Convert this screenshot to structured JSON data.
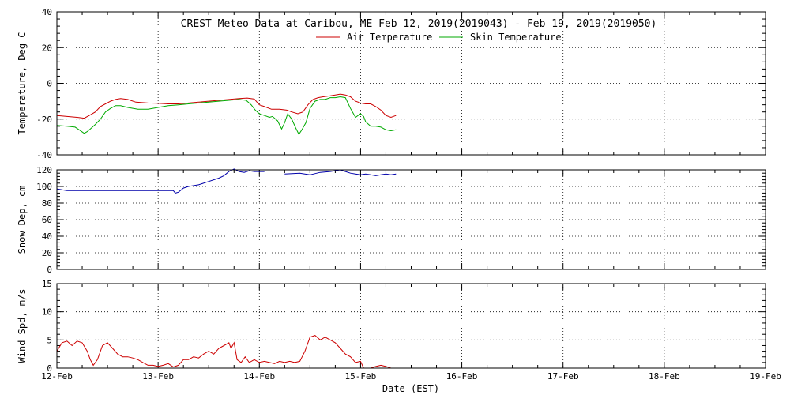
{
  "chart_data": {
    "type": "line",
    "title": "CREST Meteo Data at Caribou, ME   Feb 12, 2019(2019043) - Feb 19, 2019(2019050)",
    "xlabel": "Date (EST)",
    "xlim": [
      0,
      7
    ],
    "x_tick_labels": [
      "12-Feb",
      "13-Feb",
      "14-Feb",
      "15-Feb",
      "16-Feb",
      "17-Feb",
      "18-Feb",
      "19-Feb"
    ],
    "grid": true,
    "legend_position": "top-center",
    "panels": [
      {
        "name": "temperature",
        "ylabel": "Temperature, Deg C",
        "ylim": [
          -40,
          40
        ],
        "yticks": [
          -40,
          -20,
          0,
          20,
          40
        ],
        "series": [
          {
            "name": "Air Temperature",
            "color": "#cc0000",
            "points": [
              [
                0.0,
                -18.0
              ],
              [
                0.1,
                -18.5
              ],
              [
                0.2,
                -19.0
              ],
              [
                0.27,
                -19.5
              ],
              [
                0.32,
                -18.0
              ],
              [
                0.38,
                -16.0
              ],
              [
                0.43,
                -13.0
              ],
              [
                0.48,
                -11.5
              ],
              [
                0.53,
                -10.0
              ],
              [
                0.58,
                -9.0
              ],
              [
                0.63,
                -8.5
              ],
              [
                0.7,
                -9.0
              ],
              [
                0.78,
                -10.5
              ],
              [
                0.9,
                -11.0
              ],
              [
                1.0,
                -11.2
              ],
              [
                1.1,
                -11.5
              ],
              [
                1.2,
                -11.5
              ],
              [
                1.3,
                -11.0
              ],
              [
                1.4,
                -10.5
              ],
              [
                1.5,
                -10.0
              ],
              [
                1.6,
                -9.5
              ],
              [
                1.7,
                -9.0
              ],
              [
                1.8,
                -8.5
              ],
              [
                1.88,
                -8.2
              ],
              [
                1.95,
                -8.8
              ],
              [
                2.0,
                -12.0
              ],
              [
                2.05,
                -13.0
              ],
              [
                2.12,
                -14.5
              ],
              [
                2.2,
                -14.5
              ],
              [
                2.27,
                -15.0
              ],
              [
                2.32,
                -16.0
              ],
              [
                2.38,
                -17.0
              ],
              [
                2.43,
                -16.0
              ],
              [
                2.48,
                -12.0
              ],
              [
                2.53,
                -9.0
              ],
              [
                2.58,
                -8.0
              ],
              [
                2.63,
                -7.5
              ],
              [
                2.7,
                -7.0
              ],
              [
                2.75,
                -6.5
              ],
              [
                2.8,
                -6.0
              ],
              [
                2.85,
                -6.5
              ],
              [
                2.9,
                -7.5
              ],
              [
                2.95,
                -10.0
              ],
              [
                3.0,
                -11.0
              ],
              [
                3.05,
                -11.5
              ],
              [
                3.1,
                -11.5
              ],
              [
                3.15,
                -13.0
              ],
              [
                3.2,
                -15.0
              ],
              [
                3.25,
                -18.0
              ],
              [
                3.3,
                -19.0
              ],
              [
                3.35,
                -18.0
              ]
            ]
          },
          {
            "name": "Skin Temperature",
            "color": "#00aa00",
            "points": [
              [
                0.0,
                -23.5
              ],
              [
                0.1,
                -24.0
              ],
              [
                0.18,
                -24.5
              ],
              [
                0.22,
                -26.0
              ],
              [
                0.27,
                -28.0
              ],
              [
                0.3,
                -27.0
              ],
              [
                0.33,
                -25.5
              ],
              [
                0.38,
                -23.0
              ],
              [
                0.43,
                -20.0
              ],
              [
                0.48,
                -16.0
              ],
              [
                0.53,
                -14.0
              ],
              [
                0.58,
                -12.5
              ],
              [
                0.63,
                -12.5
              ],
              [
                0.7,
                -13.5
              ],
              [
                0.8,
                -14.5
              ],
              [
                0.9,
                -14.5
              ],
              [
                1.0,
                -13.5
              ],
              [
                1.1,
                -12.5
              ],
              [
                1.2,
                -12.0
              ],
              [
                1.3,
                -11.5
              ],
              [
                1.4,
                -11.0
              ],
              [
                1.5,
                -10.5
              ],
              [
                1.6,
                -10.0
              ],
              [
                1.7,
                -9.5
              ],
              [
                1.8,
                -9.0
              ],
              [
                1.87,
                -9.5
              ],
              [
                1.92,
                -12.0
              ],
              [
                1.96,
                -15.0
              ],
              [
                2.0,
                -17.0
              ],
              [
                2.05,
                -18.0
              ],
              [
                2.1,
                -19.0
              ],
              [
                2.13,
                -18.5
              ],
              [
                2.18,
                -21.0
              ],
              [
                2.22,
                -25.5
              ],
              [
                2.25,
                -22.0
              ],
              [
                2.28,
                -17.0
              ],
              [
                2.32,
                -20.0
              ],
              [
                2.36,
                -25.0
              ],
              [
                2.39,
                -28.5
              ],
              [
                2.42,
                -26.0
              ],
              [
                2.46,
                -22.0
              ],
              [
                2.5,
                -14.0
              ],
              [
                2.55,
                -10.0
              ],
              [
                2.6,
                -9.0
              ],
              [
                2.65,
                -9.0
              ],
              [
                2.7,
                -8.0
              ],
              [
                2.75,
                -8.0
              ],
              [
                2.8,
                -7.5
              ],
              [
                2.85,
                -8.0
              ],
              [
                2.9,
                -14.0
              ],
              [
                2.95,
                -19.0
              ],
              [
                3.0,
                -17.0
              ],
              [
                3.03,
                -18.5
              ],
              [
                3.05,
                -21.5
              ],
              [
                3.1,
                -24.0
              ],
              [
                3.15,
                -24.0
              ],
              [
                3.2,
                -24.5
              ],
              [
                3.25,
                -26.0
              ],
              [
                3.3,
                -26.5
              ],
              [
                3.35,
                -26.0
              ]
            ]
          }
        ]
      },
      {
        "name": "snow-depth",
        "ylabel": "Snow Dep, cm",
        "ylim": [
          0,
          120
        ],
        "yticks": [
          0,
          20,
          40,
          60,
          80,
          100,
          120
        ],
        "series": [
          {
            "name": "",
            "color": "#0000aa",
            "points": [
              [
                0.0,
                97
              ],
              [
                0.05,
                96
              ],
              [
                0.1,
                95
              ],
              [
                0.2,
                95
              ],
              [
                0.4,
                95
              ],
              [
                0.6,
                95
              ],
              [
                0.8,
                95
              ],
              [
                1.0,
                95
              ],
              [
                1.15,
                95
              ],
              [
                1.17,
                92
              ],
              [
                1.2,
                93
              ],
              [
                1.25,
                98
              ],
              [
                1.3,
                100
              ],
              [
                1.4,
                102
              ],
              [
                1.5,
                106
              ],
              [
                1.6,
                110
              ],
              [
                1.65,
                113
              ],
              [
                1.7,
                118
              ],
              [
                1.75,
                121
              ],
              [
                1.8,
                118
              ],
              [
                1.85,
                117
              ],
              [
                1.9,
                119
              ],
              [
                1.95,
                118
              ],
              [
                2.0,
                118
              ],
              [
                2.05,
                118
              ]
            ]
          },
          {
            "name": "",
            "color": "#0000aa",
            "points": [
              [
                2.25,
                115
              ],
              [
                2.4,
                116
              ],
              [
                2.5,
                114
              ],
              [
                2.6,
                117
              ],
              [
                2.7,
                118
              ],
              [
                2.8,
                120
              ],
              [
                2.85,
                118
              ],
              [
                2.9,
                116
              ],
              [
                2.95,
                115
              ],
              [
                3.0,
                114
              ],
              [
                3.05,
                115
              ],
              [
                3.1,
                114
              ],
              [
                3.15,
                113
              ],
              [
                3.2,
                114
              ],
              [
                3.25,
                115
              ],
              [
                3.3,
                114
              ],
              [
                3.35,
                115
              ]
            ]
          }
        ]
      },
      {
        "name": "wind-speed",
        "ylabel": "Wind Spd, m/s",
        "ylim": [
          0,
          15
        ],
        "yticks": [
          0,
          5,
          10,
          15
        ],
        "series": [
          {
            "name": "",
            "color": "#cc0000",
            "points": [
              [
                0.0,
                3.0
              ],
              [
                0.05,
                4.5
              ],
              [
                0.1,
                4.8
              ],
              [
                0.15,
                4.0
              ],
              [
                0.2,
                4.8
              ],
              [
                0.25,
                4.5
              ],
              [
                0.3,
                3.0
              ],
              [
                0.33,
                1.5
              ],
              [
                0.36,
                0.5
              ],
              [
                0.4,
                1.5
              ],
              [
                0.45,
                4.0
              ],
              [
                0.5,
                4.5
              ],
              [
                0.55,
                3.5
              ],
              [
                0.6,
                2.5
              ],
              [
                0.65,
                2.0
              ],
              [
                0.7,
                2.0
              ],
              [
                0.75,
                1.8
              ],
              [
                0.8,
                1.5
              ],
              [
                0.85,
                1.0
              ],
              [
                0.9,
                0.5
              ],
              [
                0.95,
                0.5
              ],
              [
                1.0,
                0.3
              ],
              [
                1.05,
                0.5
              ],
              [
                1.1,
                0.8
              ],
              [
                1.15,
                0.2
              ],
              [
                1.2,
                0.5
              ],
              [
                1.25,
                1.5
              ],
              [
                1.3,
                1.5
              ],
              [
                1.35,
                2.0
              ],
              [
                1.4,
                1.8
              ],
              [
                1.45,
                2.5
              ],
              [
                1.5,
                3.0
              ],
              [
                1.55,
                2.5
              ],
              [
                1.6,
                3.5
              ],
              [
                1.65,
                4.0
              ],
              [
                1.7,
                4.5
              ],
              [
                1.72,
                3.5
              ],
              [
                1.75,
                4.5
              ],
              [
                1.78,
                1.5
              ],
              [
                1.82,
                1.0
              ],
              [
                1.86,
                2.0
              ],
              [
                1.9,
                1.0
              ],
              [
                1.95,
                1.5
              ],
              [
                2.0,
                1.0
              ],
              [
                2.05,
                1.2
              ],
              [
                2.1,
                1.0
              ],
              [
                2.15,
                0.8
              ],
              [
                2.2,
                1.2
              ],
              [
                2.25,
                1.0
              ],
              [
                2.3,
                1.2
              ],
              [
                2.35,
                1.0
              ],
              [
                2.4,
                1.2
              ],
              [
                2.45,
                3.0
              ],
              [
                2.5,
                5.5
              ],
              [
                2.55,
                5.8
              ],
              [
                2.6,
                5.0
              ],
              [
                2.65,
                5.5
              ],
              [
                2.7,
                5.0
              ],
              [
                2.75,
                4.5
              ],
              [
                2.8,
                3.5
              ],
              [
                2.85,
                2.5
              ],
              [
                2.9,
                2.0
              ],
              [
                2.95,
                1.0
              ],
              [
                3.0,
                1.2
              ],
              [
                3.03,
                0.0
              ],
              [
                3.1,
                0.0
              ],
              [
                3.15,
                0.3
              ],
              [
                3.2,
                0.5
              ],
              [
                3.25,
                0.3
              ],
              [
                3.3,
                0.0
              ]
            ]
          }
        ]
      }
    ]
  }
}
